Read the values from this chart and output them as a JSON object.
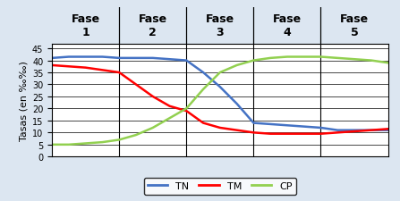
{
  "background_color": "#dce6f1",
  "plot_bg_color": "#ffffff",
  "phases": [
    "Fase\n1",
    "Fase\n2",
    "Fase\n3",
    "Fase\n4",
    "Fase\n5"
  ],
  "phase_boundaries": [
    0,
    20,
    40,
    60,
    80,
    100
  ],
  "ylabel": "Tasas (en ‰‰)",
  "yticks": [
    0,
    5,
    10,
    15,
    20,
    25,
    30,
    35,
    40,
    45
  ],
  "ylim": [
    0,
    47
  ],
  "TN_color": "#4472c4",
  "TM_color": "#ff0000",
  "CP_color": "#92d050",
  "TN_x": [
    0,
    5,
    10,
    15,
    20,
    25,
    30,
    35,
    40,
    45,
    50,
    55,
    60,
    65,
    70,
    75,
    80,
    85,
    90,
    95,
    100
  ],
  "TN_y": [
    41,
    41.5,
    41.5,
    41.5,
    41,
    41,
    41,
    40.5,
    40,
    35,
    29,
    22,
    14,
    13.5,
    13,
    12.5,
    12,
    11,
    11,
    11,
    11
  ],
  "TM_x": [
    0,
    5,
    10,
    15,
    20,
    25,
    30,
    35,
    40,
    45,
    50,
    55,
    60,
    65,
    70,
    75,
    80,
    85,
    90,
    95,
    100
  ],
  "TM_y": [
    38,
    37.5,
    37,
    36,
    35,
    30,
    25,
    21,
    19,
    14,
    12,
    11,
    10,
    9.5,
    9.5,
    9.5,
    9.5,
    10,
    10.5,
    11,
    11.5
  ],
  "CP_x": [
    0,
    5,
    10,
    15,
    20,
    25,
    30,
    35,
    40,
    45,
    50,
    55,
    60,
    65,
    70,
    75,
    80,
    85,
    90,
    95,
    100
  ],
  "CP_y": [
    5,
    5,
    5.5,
    6,
    7,
    9,
    12,
    16,
    20,
    28,
    35,
    38,
    40,
    41,
    41.5,
    41.5,
    41.5,
    41,
    40.5,
    40,
    39
  ],
  "legend_labels": [
    "TN",
    "TM",
    "CP"
  ],
  "title_fontsize": 9,
  "label_fontsize": 8,
  "tick_fontsize": 7,
  "legend_fontsize": 8
}
